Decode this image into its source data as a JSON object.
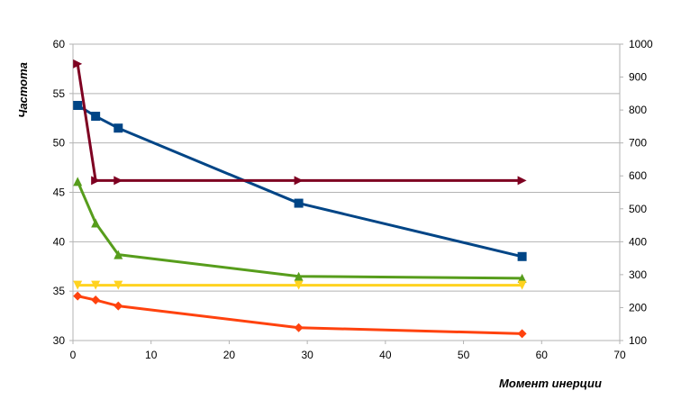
{
  "chart_data": {
    "type": "line",
    "title": "",
    "xlabel": "Момент инерции",
    "ylabel": "Частота",
    "xlim": [
      0,
      70
    ],
    "ylim": [
      30,
      60
    ],
    "y2lim": [
      100,
      1000
    ],
    "xticks": [
      "0",
      "10",
      "20",
      "30",
      "40",
      "50",
      "60",
      "70"
    ],
    "yticks": [
      "30",
      "35",
      "40",
      "45",
      "50",
      "55",
      "60"
    ],
    "y2ticks": [
      "100",
      "200",
      "300",
      "400",
      "500",
      "600",
      "700",
      "800",
      "900",
      "1000"
    ],
    "grid": true,
    "legend": "none",
    "series": [
      {
        "color": "#004586",
        "marker": "square",
        "axis": "left",
        "x": [
          0.6,
          2.9,
          5.8,
          28.9,
          57.5
        ],
        "y": [
          53.8,
          52.7,
          51.5,
          43.9,
          38.5
        ]
      },
      {
        "color": "#7e0021",
        "marker": "triangle-right",
        "axis": "left",
        "x": [
          0.6,
          2.9,
          5.8,
          28.9,
          57.5
        ],
        "y": [
          58.0,
          46.2,
          46.2,
          46.2,
          46.2
        ]
      },
      {
        "color": "#579d1c",
        "marker": "triangle-up",
        "axis": "left",
        "x": [
          0.6,
          2.9,
          5.8,
          28.9,
          57.5
        ],
        "y": [
          46.1,
          41.9,
          38.7,
          36.5,
          36.3
        ]
      },
      {
        "color": "#ffd320",
        "marker": "triangle-down",
        "axis": "left",
        "x": [
          0.6,
          2.9,
          5.8,
          28.9,
          57.5
        ],
        "y": [
          35.6,
          35.6,
          35.6,
          35.6,
          35.6
        ]
      },
      {
        "color": "#ff420e",
        "marker": "diamond",
        "axis": "left",
        "x": [
          0.6,
          2.9,
          5.8,
          28.9,
          57.5
        ],
        "y": [
          34.5,
          34.1,
          33.5,
          31.3,
          30.7
        ]
      }
    ]
  }
}
